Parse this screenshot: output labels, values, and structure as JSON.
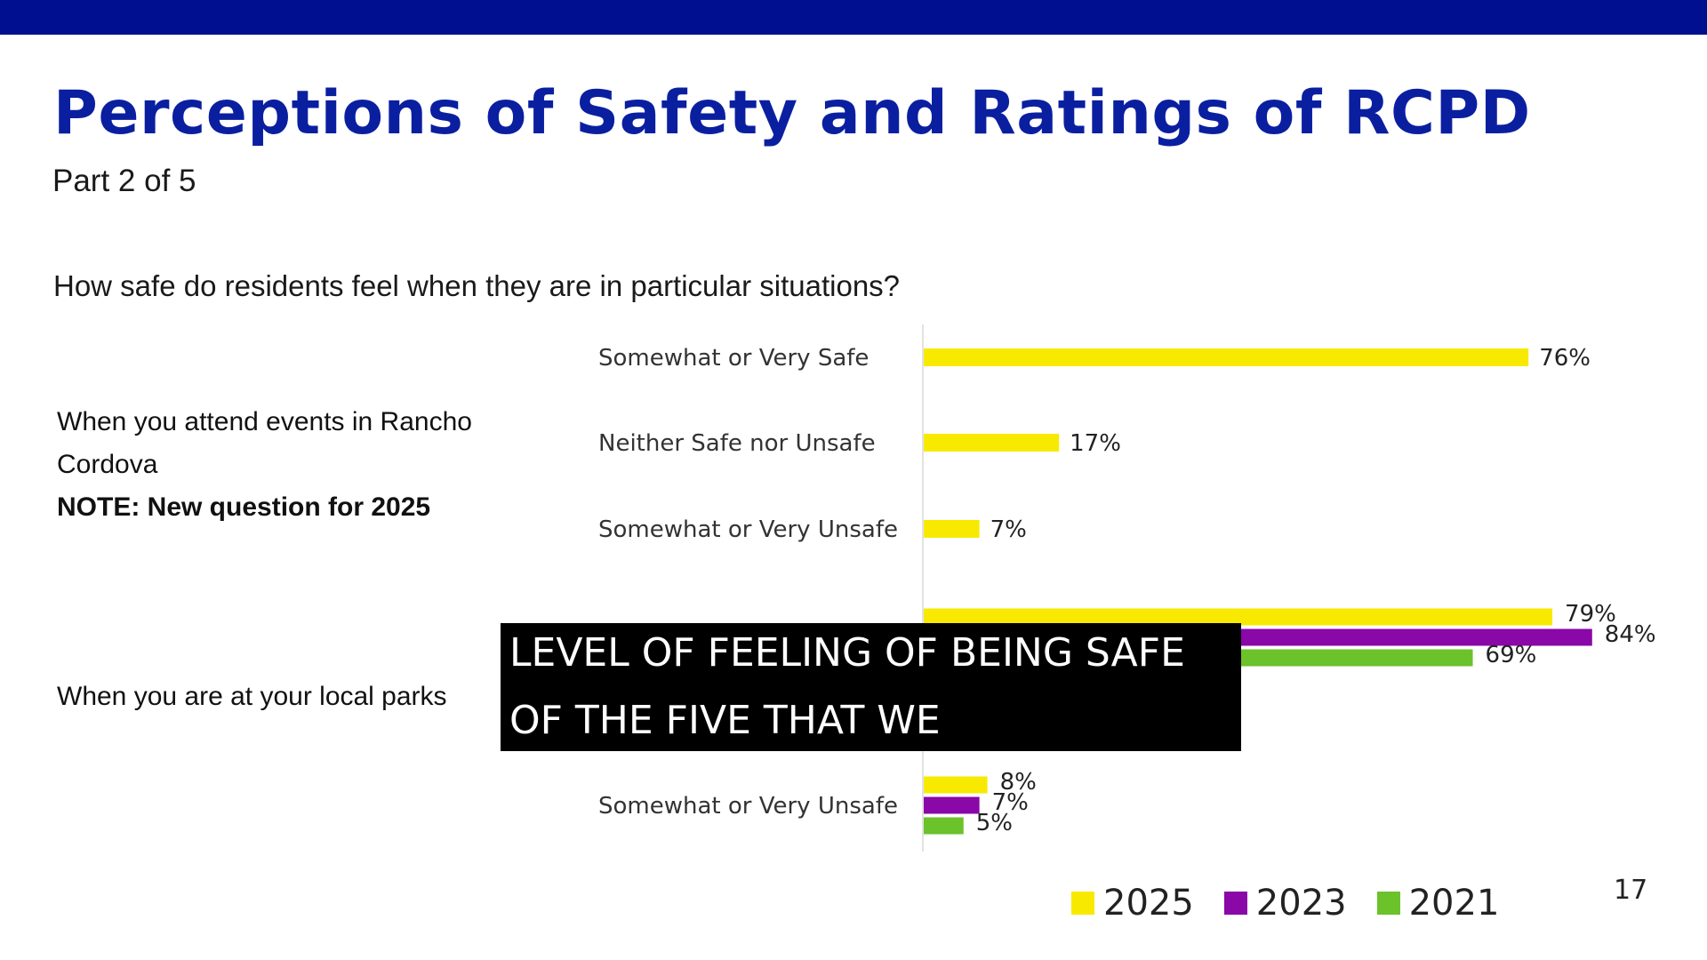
{
  "slide": {
    "title": "Perceptions of Safety and Ratings of RCPD",
    "subtitle": "Part 2 of 5",
    "question": "How safe do residents feel when they are in particular situations?",
    "page_number": "17"
  },
  "groups": [
    {
      "label_line1": "When you attend events in Rancho",
      "label_line2": "Cordova",
      "note": "NOTE: New question for 2025"
    },
    {
      "label": "When you are at your local parks"
    }
  ],
  "caption": {
    "line1": "LEVEL OF FEELING OF BEING SAFE",
    "line2": "OF THE FIVE THAT WE"
  },
  "colors": {
    "y2025": "#f7ea00",
    "y2023": "#8a07a8",
    "y2021": "#6cc22a",
    "title": "#0a1fa0",
    "top_bar": "#000f8f"
  },
  "chart_data": {
    "type": "bar",
    "orientation": "horizontal",
    "title": "How safe do residents feel when they are in particular situations?",
    "xlim": [
      0,
      100
    ],
    "legend": [
      "2025",
      "2023",
      "2021"
    ],
    "legend_position": "bottom-right",
    "groups": [
      {
        "group": "When you attend events in Rancho Cordova",
        "categories": [
          {
            "label": "Somewhat or Very Safe",
            "bars": [
              {
                "series": "2025",
                "value": 76,
                "label": "76%"
              }
            ]
          },
          {
            "label": "Neither Safe nor Unsafe",
            "bars": [
              {
                "series": "2025",
                "value": 17,
                "label": "17%"
              }
            ]
          },
          {
            "label": "Somewhat or Very Unsafe",
            "bars": [
              {
                "series": "2025",
                "value": 7,
                "label": "7%"
              }
            ]
          }
        ]
      },
      {
        "group": "When you are at your local parks",
        "categories": [
          {
            "label": "",
            "bars": [
              {
                "series": "2025",
                "value": 79,
                "label": "79%"
              },
              {
                "series": "2023",
                "value": 84,
                "label": "84%"
              },
              {
                "series": "2021",
                "value": 69,
                "label": "69%"
              }
            ]
          },
          {
            "label": "Somewhat or Very Unsafe",
            "bars": [
              {
                "series": "2025",
                "value": 8,
                "label": "8%"
              },
              {
                "series": "2023",
                "value": 7,
                "label": "7%"
              },
              {
                "series": "2021",
                "value": 5,
                "label": "5%"
              }
            ]
          }
        ]
      }
    ]
  }
}
